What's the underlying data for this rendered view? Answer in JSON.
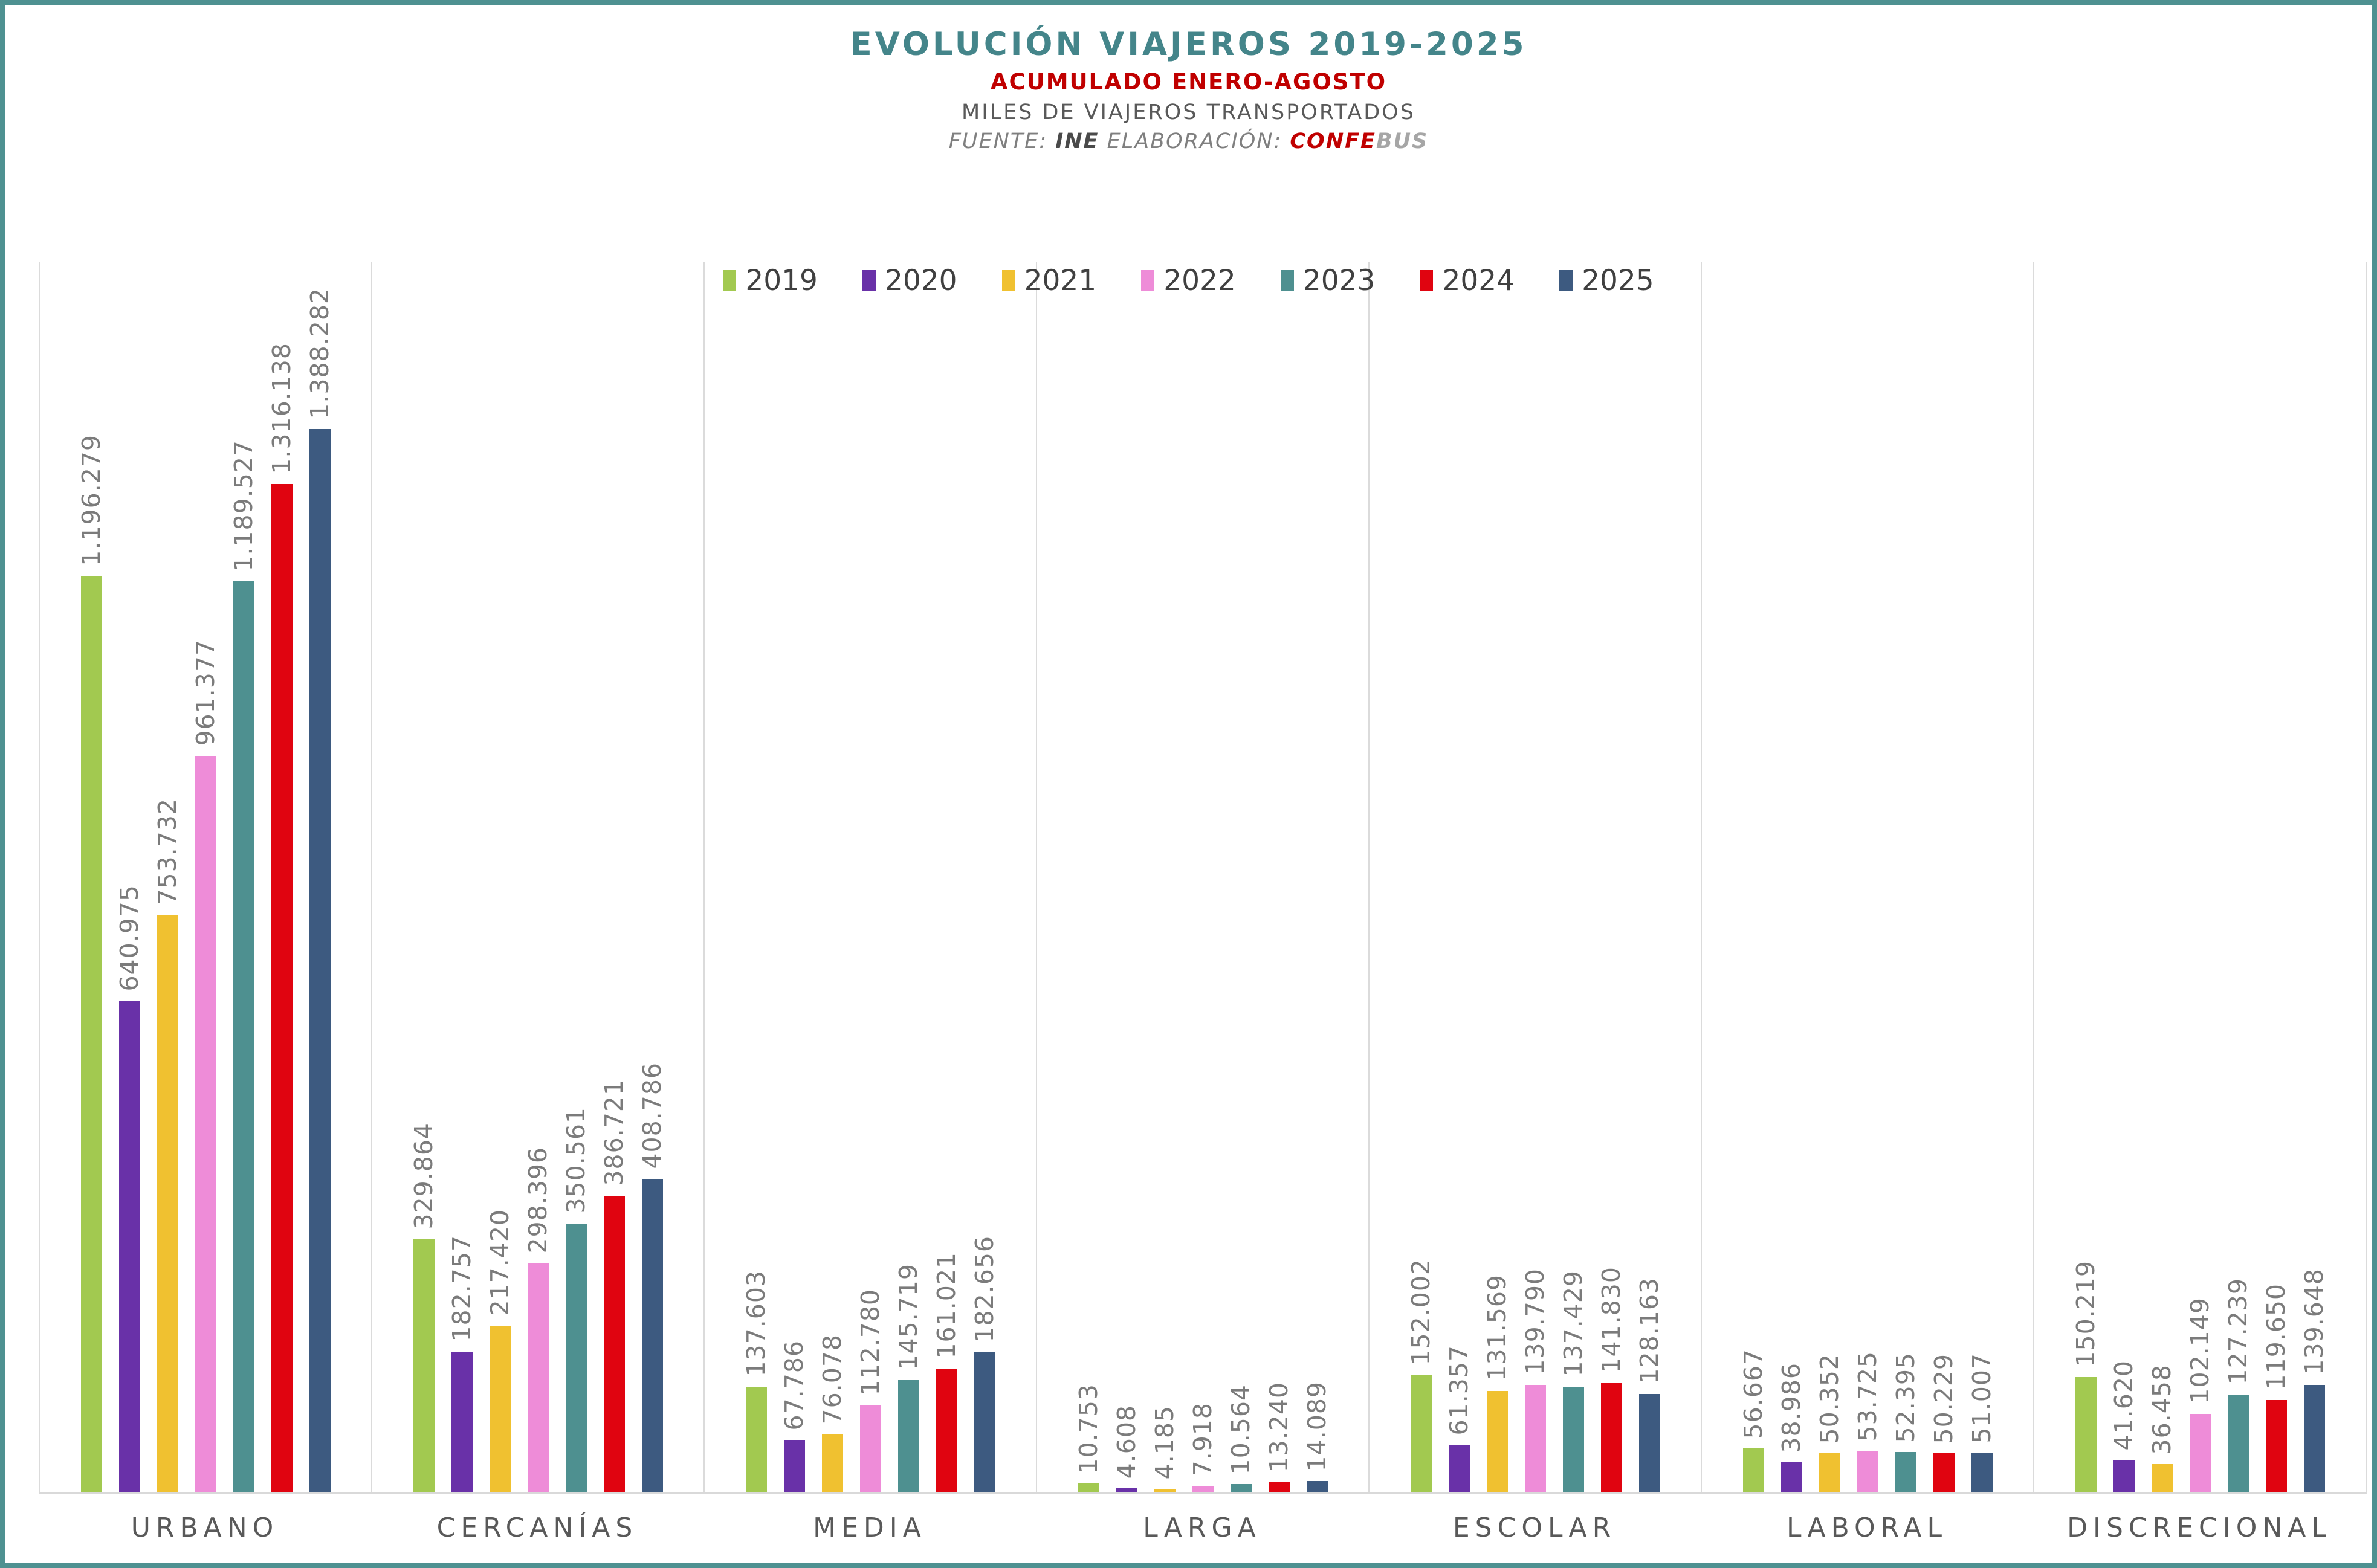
{
  "header": {
    "title": "EVOLUCIÓN VIAJEROS 2019-2025",
    "subtitle": "ACUMULADO ENERO-AGOSTO",
    "subtitle2": "MILES DE VIAJEROS TRANSPORTADOS",
    "source_prefix": "FUENTE: ",
    "source_name": "INE",
    "elaboration_prefix": " ELABORACIÓN: ",
    "elaboration_brand_bold": "CONFE",
    "elaboration_brand_light": "BUS"
  },
  "colors": {
    "frame_border": "#4E9191",
    "title": "#44858A",
    "subtitle_red": "#C00000",
    "text_gray": "#595959",
    "value_label_gray": "#7B7B7B",
    "axis_gray": "#D9D9D9"
  },
  "chart_data": {
    "type": "bar",
    "title": "EVOLUCIÓN VIAJEROS 2019-2025",
    "subtitle": "ACUMULADO ENERO-AGOSTO",
    "units": "MILES DE VIAJEROS TRANSPORTADOS",
    "categories": [
      "URBANO",
      "CERCANÍAS",
      "MEDIA",
      "LARGA",
      "ESCOLAR",
      "LABORAL",
      "DISCRECIONAL"
    ],
    "series": [
      {
        "name": "2019",
        "color": "#A2C950",
        "values": [
          1196279,
          329864,
          137603,
          10753,
          152002,
          56667,
          150219
        ]
      },
      {
        "name": "2020",
        "color": "#6931A8",
        "values": [
          640975,
          182757,
          67786,
          4608,
          61357,
          38986,
          41620
        ]
      },
      {
        "name": "2021",
        "color": "#F0C130",
        "values": [
          753732,
          217420,
          76078,
          4185,
          131569,
          50352,
          36458
        ]
      },
      {
        "name": "2022",
        "color": "#EE8CD8",
        "values": [
          961377,
          298396,
          112780,
          7918,
          139790,
          53725,
          102149
        ]
      },
      {
        "name": "2023",
        "color": "#4E9090",
        "values": [
          1189527,
          350561,
          145719,
          10564,
          137429,
          52395,
          127239
        ]
      },
      {
        "name": "2024",
        "color": "#E00410",
        "values": [
          1316138,
          386721,
          161021,
          13240,
          141830,
          50229,
          119650
        ]
      },
      {
        "name": "2025",
        "color": "#3D5A80",
        "values": [
          1388282,
          408786,
          182656,
          14089,
          128163,
          51007,
          139648
        ]
      }
    ],
    "ylim": [
      0,
      1606000
    ],
    "xlabel": "",
    "ylabel": "",
    "grid": "vertical group separators only, y-axis hidden",
    "legend_position": "top-center",
    "value_labels": "rotated 90deg above each bar, '.' as thousands separator"
  }
}
